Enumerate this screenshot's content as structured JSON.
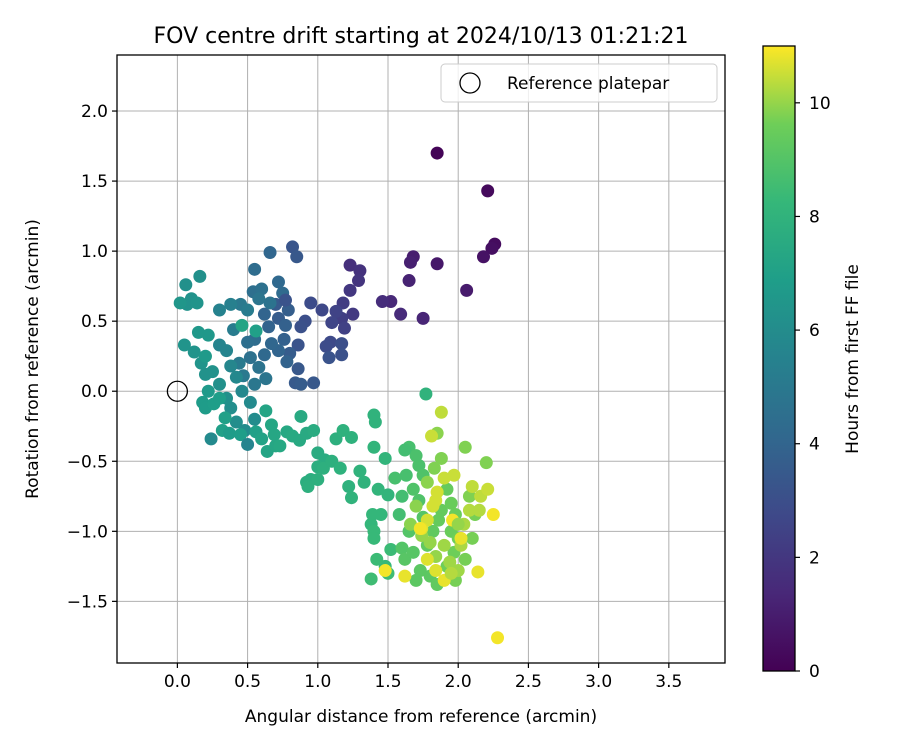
{
  "chart_data": {
    "type": "scatter",
    "title": "FOV centre drift starting at 2024/10/13 01:21:21",
    "xlabel": "Angular distance from reference (arcmin)",
    "ylabel": "Rotation from reference (arcmin)",
    "xlim": [
      -0.43,
      3.9
    ],
    "ylim": [
      -1.94,
      2.4
    ],
    "xticks": [
      0.0,
      0.5,
      1.0,
      1.5,
      2.0,
      2.5,
      3.0,
      3.5
    ],
    "xtick_labels": [
      "0.0",
      "0.5",
      "1.0",
      "1.5",
      "2.0",
      "2.5",
      "3.0",
      "3.5"
    ],
    "yticks": [
      -1.5,
      -1.0,
      -0.5,
      0.0,
      0.5,
      1.0,
      1.5,
      2.0
    ],
    "ytick_labels": [
      "−1.5",
      "−1.0",
      "−0.5",
      "0.0",
      "0.5",
      "1.0",
      "1.5",
      "2.0"
    ],
    "grid": true,
    "legend": {
      "position": "top-right",
      "entries": [
        "Reference platepar"
      ]
    },
    "reference_point": {
      "x": 0.0,
      "y": 0.0,
      "label": "Reference platepar"
    },
    "colorbar": {
      "label": "Hours from first FF file",
      "colormap": "viridis",
      "range": [
        0,
        11
      ],
      "ticks": [
        0,
        2,
        4,
        6,
        8,
        10
      ],
      "tick_labels": [
        "0",
        "2",
        "4",
        "6",
        "8",
        "10"
      ]
    },
    "points": [
      [
        1.85,
        1.7,
        0.1
      ],
      [
        2.21,
        1.43,
        0.3
      ],
      [
        2.26,
        1.05,
        0.4
      ],
      [
        2.24,
        1.02,
        0.5
      ],
      [
        2.18,
        0.96,
        0.6
      ],
      [
        1.85,
        0.91,
        0.8
      ],
      [
        2.06,
        0.72,
        0.9
      ],
      [
        1.68,
        0.96,
        1.0
      ],
      [
        1.66,
        0.92,
        1.1
      ],
      [
        1.65,
        0.79,
        1.2
      ],
      [
        1.75,
        0.52,
        1.3
      ],
      [
        1.52,
        0.64,
        1.4
      ],
      [
        1.59,
        0.55,
        1.5
      ],
      [
        1.46,
        0.64,
        1.6
      ],
      [
        1.23,
        0.9,
        1.7
      ],
      [
        1.3,
        0.86,
        1.8
      ],
      [
        1.29,
        0.79,
        1.9
      ],
      [
        1.23,
        0.72,
        2.0
      ],
      [
        1.25,
        0.55,
        2.1
      ],
      [
        1.18,
        0.63,
        2.2
      ],
      [
        1.17,
        0.52,
        2.3
      ],
      [
        1.19,
        0.45,
        2.4
      ],
      [
        1.13,
        0.57,
        2.5
      ],
      [
        1.1,
        0.49,
        2.6
      ],
      [
        1.03,
        0.58,
        2.7
      ],
      [
        1.09,
        0.35,
        2.8
      ],
      [
        1.06,
        0.32,
        2.9
      ],
      [
        1.17,
        0.34,
        3.0
      ],
      [
        1.17,
        0.26,
        3.1
      ],
      [
        1.08,
        0.24,
        3.2
      ],
      [
        0.95,
        0.63,
        2.9
      ],
      [
        0.91,
        0.5,
        3.0
      ],
      [
        0.88,
        0.46,
        3.1
      ],
      [
        0.86,
        0.33,
        3.2
      ],
      [
        0.82,
        1.03,
        3.3
      ],
      [
        0.85,
        0.96,
        3.4
      ],
      [
        0.7,
        0.62,
        3.5
      ],
      [
        0.72,
        0.52,
        3.6
      ],
      [
        0.79,
        0.58,
        3.7
      ],
      [
        0.77,
        0.47,
        3.8
      ],
      [
        0.65,
        0.46,
        3.9
      ],
      [
        0.62,
        0.55,
        4.0
      ],
      [
        0.66,
        0.99,
        4.1
      ],
      [
        0.72,
        0.78,
        4.2
      ],
      [
        0.75,
        0.7,
        4.3
      ],
      [
        0.55,
        0.87,
        4.4
      ],
      [
        0.54,
        0.71,
        4.5
      ],
      [
        0.6,
        0.73,
        4.6
      ],
      [
        0.66,
        0.63,
        4.7
      ],
      [
        0.58,
        0.66,
        4.8
      ],
      [
        0.77,
        0.65,
        3.2
      ],
      [
        0.86,
        0.16,
        3.4
      ],
      [
        0.84,
        0.06,
        3.5
      ],
      [
        0.88,
        0.05,
        3.6
      ],
      [
        0.97,
        0.06,
        3.4
      ],
      [
        0.8,
        0.27,
        3.6
      ],
      [
        0.76,
        0.37,
        3.8
      ],
      [
        0.78,
        0.21,
        3.9
      ],
      [
        0.72,
        0.29,
        4.0
      ],
      [
        0.67,
        0.34,
        4.1
      ],
      [
        0.62,
        0.26,
        4.2
      ],
      [
        0.55,
        0.37,
        4.4
      ],
      [
        0.5,
        0.35,
        4.5
      ],
      [
        0.52,
        0.24,
        4.6
      ],
      [
        0.58,
        0.17,
        4.7
      ],
      [
        0.63,
        0.09,
        4.8
      ],
      [
        0.55,
        0.05,
        4.9
      ],
      [
        0.47,
        0.11,
        5.0
      ],
      [
        0.44,
        0.2,
        5.1
      ],
      [
        0.4,
        0.44,
        5.2
      ],
      [
        0.45,
        0.62,
        5.0
      ],
      [
        0.5,
        0.58,
        5.2
      ],
      [
        0.38,
        0.62,
        5.4
      ],
      [
        0.3,
        0.58,
        5.5
      ],
      [
        0.3,
        0.33,
        5.6
      ],
      [
        0.35,
        0.29,
        5.6
      ],
      [
        0.38,
        0.18,
        5.7
      ],
      [
        0.42,
        0.1,
        5.8
      ],
      [
        0.46,
        0.0,
        5.8
      ],
      [
        0.52,
        -0.08,
        5.9
      ],
      [
        0.55,
        -0.2,
        6.0
      ],
      [
        0.48,
        -0.28,
        6.0
      ],
      [
        0.42,
        -0.22,
        6.1
      ],
      [
        0.38,
        -0.12,
        6.1
      ],
      [
        0.35,
        -0.05,
        6.2
      ],
      [
        0.3,
        0.05,
        6.2
      ],
      [
        0.25,
        0.14,
        6.3
      ],
      [
        0.2,
        0.12,
        6.3
      ],
      [
        0.17,
        0.2,
        6.4
      ],
      [
        0.12,
        0.28,
        6.4
      ],
      [
        0.05,
        0.33,
        6.4
      ],
      [
        0.07,
        0.62,
        6.3
      ],
      [
        0.1,
        0.66,
        6.3
      ],
      [
        0.06,
        0.76,
        6.2
      ],
      [
        0.16,
        0.82,
        6.2
      ],
      [
        0.14,
        0.63,
        6.4
      ],
      [
        0.02,
        0.63,
        6.5
      ],
      [
        0.15,
        0.42,
        6.6
      ],
      [
        0.22,
        0.4,
        6.6
      ],
      [
        0.2,
        0.25,
        6.7
      ],
      [
        0.22,
        0.0,
        6.7
      ],
      [
        0.18,
        -0.08,
        6.8
      ],
      [
        0.2,
        -0.12,
        6.8
      ],
      [
        0.26,
        -0.09,
        6.9
      ],
      [
        0.3,
        -0.05,
        6.9
      ],
      [
        0.34,
        -0.19,
        7.0
      ],
      [
        0.32,
        -0.28,
        7.0
      ],
      [
        0.24,
        -0.34,
        5.9
      ],
      [
        0.37,
        -0.3,
        6.8
      ],
      [
        0.45,
        -0.31,
        6.9
      ],
      [
        0.5,
        -0.38,
        5.6
      ],
      [
        0.56,
        -0.29,
        7.0
      ],
      [
        0.6,
        -0.34,
        7.1
      ],
      [
        0.64,
        -0.43,
        7.2
      ],
      [
        0.7,
        -0.39,
        7.3
      ],
      [
        0.46,
        0.47,
        7.2
      ],
      [
        0.56,
        0.43,
        7.0
      ],
      [
        0.63,
        -0.14,
        7.2
      ],
      [
        0.67,
        -0.24,
        7.3
      ],
      [
        0.69,
        -0.31,
        7.3
      ],
      [
        0.73,
        -0.39,
        7.4
      ],
      [
        0.78,
        -0.29,
        7.4
      ],
      [
        0.82,
        -0.32,
        7.5
      ],
      [
        0.87,
        -0.35,
        7.5
      ],
      [
        0.92,
        -0.3,
        7.5
      ],
      [
        0.88,
        -0.18,
        7.5
      ],
      [
        0.97,
        -0.28,
        7.6
      ],
      [
        1.0,
        -0.44,
        7.6
      ],
      [
        1.05,
        -0.49,
        7.6
      ],
      [
        1.0,
        -0.54,
        7.7
      ],
      [
        0.95,
        -0.63,
        7.7
      ],
      [
        0.92,
        -0.65,
        7.7
      ],
      [
        0.93,
        -0.68,
        7.8
      ],
      [
        1.0,
        -0.63,
        7.8
      ],
      [
        1.04,
        -0.55,
        7.8
      ],
      [
        1.1,
        -0.5,
        7.8
      ],
      [
        1.13,
        -0.34,
        7.8
      ],
      [
        1.18,
        -0.28,
        7.9
      ],
      [
        1.24,
        -0.33,
        7.9
      ],
      [
        1.16,
        -0.55,
        7.9
      ],
      [
        1.22,
        -0.68,
        7.9
      ],
      [
        1.24,
        -0.76,
        8.0
      ],
      [
        1.3,
        -0.57,
        8.0
      ],
      [
        1.33,
        -0.65,
        8.0
      ],
      [
        1.4,
        -0.17,
        8.0
      ],
      [
        1.41,
        -0.22,
        8.0
      ],
      [
        1.4,
        -0.4,
        8.1
      ],
      [
        1.48,
        -0.48,
        8.1
      ],
      [
        1.5,
        -0.74,
        8.1
      ],
      [
        1.43,
        -0.7,
        8.1
      ],
      [
        1.39,
        -0.88,
        8.2
      ],
      [
        1.45,
        -0.88,
        8.2
      ],
      [
        1.38,
        -0.95,
        8.2
      ],
      [
        1.4,
        -1.0,
        8.3
      ],
      [
        1.4,
        -1.05,
        8.3
      ],
      [
        1.48,
        -1.25,
        8.3
      ],
      [
        1.52,
        -1.13,
        8.4
      ],
      [
        1.42,
        -1.2,
        8.4
      ],
      [
        1.38,
        -1.34,
        8.5
      ],
      [
        1.5,
        -1.3,
        8.5
      ],
      [
        1.58,
        -0.88,
        8.6
      ],
      [
        1.6,
        -0.75,
        8.6
      ],
      [
        1.55,
        -0.62,
        8.7
      ],
      [
        1.63,
        -0.6,
        8.7
      ],
      [
        1.65,
        -0.4,
        8.7
      ],
      [
        1.7,
        -0.46,
        8.8
      ],
      [
        1.72,
        -0.53,
        8.8
      ],
      [
        1.75,
        -0.6,
        8.9
      ],
      [
        1.68,
        -0.7,
        8.9
      ],
      [
        1.72,
        -0.78,
        8.9
      ],
      [
        1.75,
        -0.9,
        9.0
      ],
      [
        1.65,
        -1.0,
        9.0
      ],
      [
        1.6,
        -1.12,
        9.0
      ],
      [
        1.62,
        -1.2,
        9.1
      ],
      [
        1.68,
        -1.15,
        9.1
      ],
      [
        1.73,
        -1.28,
        9.2
      ],
      [
        1.7,
        -1.35,
        9.2
      ],
      [
        1.8,
        -1.32,
        9.2
      ],
      [
        1.85,
        -1.38,
        9.3
      ],
      [
        1.78,
        -1.1,
        9.3
      ],
      [
        1.82,
        -1.0,
        9.3
      ],
      [
        1.86,
        -0.92,
        9.4
      ],
      [
        1.88,
        -0.85,
        9.4
      ],
      [
        1.92,
        -0.7,
        9.4
      ],
      [
        1.95,
        -0.8,
        9.5
      ],
      [
        1.98,
        -0.88,
        9.5
      ],
      [
        1.95,
        -1.0,
        9.5
      ],
      [
        2.0,
        -1.05,
        9.6
      ],
      [
        1.97,
        -1.15,
        9.6
      ],
      [
        1.92,
        -1.25,
        9.6
      ],
      [
        1.98,
        -1.35,
        9.7
      ],
      [
        2.05,
        -1.2,
        9.7
      ],
      [
        2.1,
        -1.05,
        9.7
      ],
      [
        2.12,
        -0.88,
        9.7
      ],
      [
        2.08,
        -0.75,
        9.8
      ],
      [
        2.2,
        -0.51,
        9.8
      ],
      [
        2.05,
        -0.4,
        9.8
      ],
      [
        1.77,
        -0.02,
        8.0
      ],
      [
        1.62,
        -0.42,
        8.6
      ],
      [
        1.85,
        -0.3,
        9.9
      ],
      [
        1.88,
        -0.48,
        9.8
      ],
      [
        1.83,
        -0.55,
        9.8
      ],
      [
        1.78,
        -0.65,
        9.9
      ],
      [
        1.7,
        -0.82,
        9.9
      ],
      [
        1.66,
        -0.95,
        9.9
      ],
      [
        1.74,
        -1.03,
        10.0
      ],
      [
        1.8,
        -1.08,
        10.0
      ],
      [
        1.84,
        -1.18,
        10.0
      ],
      [
        1.9,
        -1.1,
        10.1
      ],
      [
        1.94,
        -1.22,
        10.1
      ],
      [
        2.0,
        -1.28,
        10.1
      ],
      [
        2.02,
        -1.1,
        10.2
      ],
      [
        2.04,
        -0.95,
        10.2
      ],
      [
        2.08,
        -0.85,
        10.3
      ],
      [
        2.15,
        -0.85,
        10.3
      ],
      [
        2.1,
        -0.68,
        10.4
      ],
      [
        2.16,
        -0.75,
        10.4
      ],
      [
        2.21,
        -0.7,
        10.5
      ],
      [
        1.97,
        -0.6,
        10.5
      ],
      [
        1.9,
        -0.62,
        10.5
      ],
      [
        1.85,
        -0.72,
        10.6
      ],
      [
        1.82,
        -0.82,
        10.6
      ],
      [
        1.78,
        -0.92,
        10.6
      ],
      [
        1.74,
        -0.98,
        10.7
      ],
      [
        1.78,
        -1.2,
        10.7
      ],
      [
        1.84,
        -1.28,
        10.7
      ],
      [
        1.9,
        -1.35,
        10.8
      ],
      [
        2.14,
        -1.29,
        10.8
      ],
      [
        2.02,
        -1.05,
        10.8
      ],
      [
        1.88,
        -0.15,
        10.4
      ],
      [
        1.81,
        -0.32,
        10.5
      ],
      [
        2.25,
        -0.88,
        10.9
      ],
      [
        2.28,
        -1.76,
        10.9
      ],
      [
        1.48,
        -1.28,
        10.9
      ],
      [
        1.62,
        -1.32,
        10.8
      ],
      [
        1.73,
        -0.98,
        10.9
      ],
      [
        1.96,
        -0.92,
        10.9
      ],
      [
        1.84,
        -0.78,
        10.6
      ],
      [
        1.95,
        -1.3,
        10.3
      ],
      [
        2.0,
        -0.95,
        10.0
      ]
    ]
  }
}
